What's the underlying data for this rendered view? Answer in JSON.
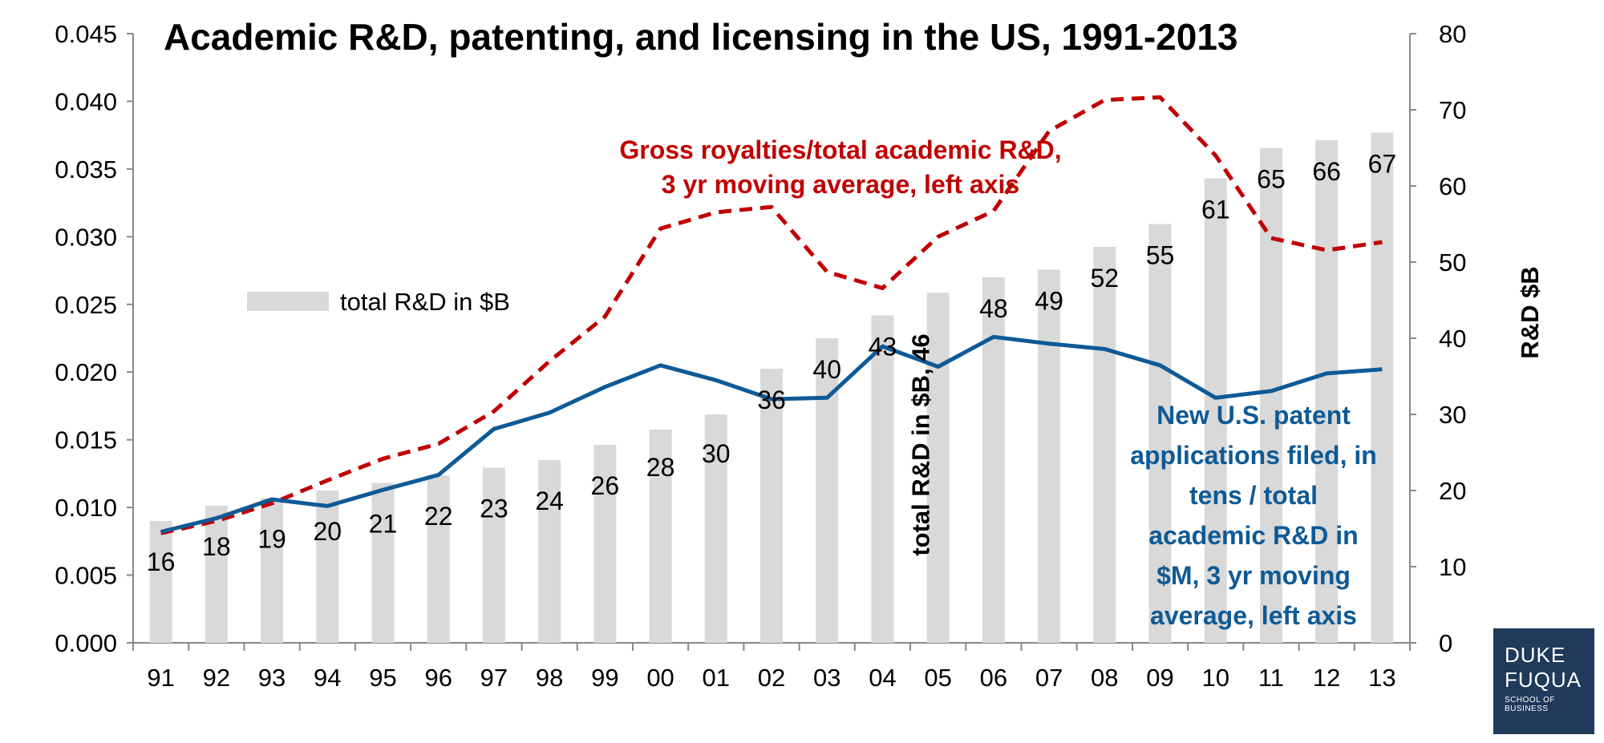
{
  "colors": {
    "bars": "#d9d9d9",
    "royalties": "#c00000",
    "patents": "#0e5a96",
    "annotation_red": "#c00000",
    "annotation_blue": "#0e5a96",
    "logo_bg": "#1f3a5a"
  },
  "chart_data": {
    "type": "bar+line",
    "title": "Academic R&D, patenting, and licensing in the US, 1991-2013",
    "categories": [
      "91",
      "92",
      "93",
      "94",
      "95",
      "96",
      "97",
      "98",
      "99",
      "00",
      "01",
      "02",
      "03",
      "04",
      "05",
      "06",
      "07",
      "08",
      "09",
      "10",
      "11",
      "12",
      "13"
    ],
    "left_axis": {
      "ylim": [
        0,
        0.045
      ],
      "ticks": [
        "0.000",
        "0.005",
        "0.010",
        "0.015",
        "0.020",
        "0.025",
        "0.030",
        "0.035",
        "0.040",
        "0.045"
      ]
    },
    "right_axis": {
      "label": "R&D $B",
      "ylim": [
        0,
        80
      ],
      "ticks": [
        "0",
        "10",
        "20",
        "30",
        "40",
        "50",
        "60",
        "70",
        "80"
      ]
    },
    "bar_series": {
      "name": "total R&D in $B",
      "axis": "right",
      "values": [
        16,
        18,
        19,
        20,
        21,
        22,
        23,
        24,
        26,
        28,
        30,
        36,
        40,
        43,
        46,
        48,
        49,
        52,
        55,
        61,
        65,
        66,
        67
      ],
      "labels": [
        "16",
        "18",
        "19",
        "20",
        "21",
        "22",
        "23",
        "24",
        "26",
        "28",
        "30",
        "36",
        "40",
        "43",
        "total R&D in $B, 46",
        "48",
        "49",
        "52",
        "55",
        "61",
        "65",
        "66",
        "67"
      ]
    },
    "line_series": [
      {
        "name": "Gross royalties/total academic R&D, 3 yr moving average, left axis",
        "axis": "left",
        "style": "dashed",
        "values": [
          0.0081,
          0.009,
          0.0103,
          0.012,
          0.0136,
          0.0147,
          0.0171,
          0.0208,
          0.0241,
          0.0306,
          0.0318,
          0.0322,
          0.0274,
          0.0262,
          0.03,
          0.0319,
          0.0378,
          0.0401,
          0.0403,
          0.036,
          0.0299,
          0.029,
          0.0296
        ]
      },
      {
        "name": "New U.S. patent applications filed, in tens / total academic R&D in $M, 3 yr moving average, left axis",
        "axis": "left",
        "style": "solid",
        "values": [
          0.0082,
          0.0092,
          0.0106,
          0.0101,
          0.0113,
          0.0124,
          0.0158,
          0.017,
          0.0189,
          0.0205,
          0.0194,
          0.018,
          0.0181,
          0.0219,
          0.0204,
          0.0226,
          0.0221,
          0.0217,
          0.0205,
          0.0181,
          0.0186,
          0.0199,
          0.0202
        ]
      }
    ],
    "legend": "total R&D in $B",
    "annotations": {
      "royalties": [
        "Gross royalties/total academic R&D,",
        "3 yr moving average, left axis"
      ],
      "patents": [
        "New U.S. patent",
        "applications filed, in",
        "tens / total",
        "academic R&D in",
        "$M, 3 yr moving",
        "average, left axis"
      ]
    }
  },
  "logo": {
    "line1": "DUKE",
    "line2": "FUQUA",
    "line3": "SCHOOL OF BUSINESS"
  }
}
